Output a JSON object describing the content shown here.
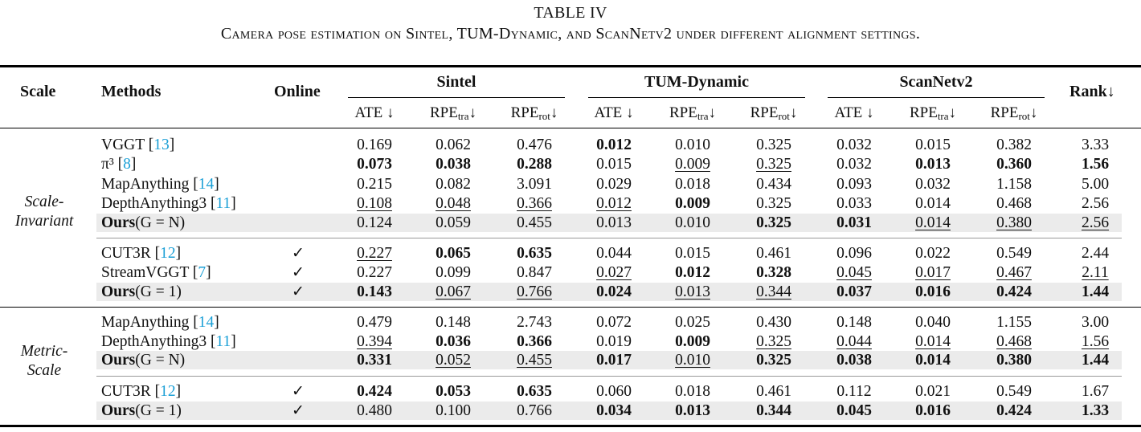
{
  "caption": {
    "label": "TABLE IV",
    "text": "Camera pose estimation on Sintel, TUM-Dynamic, and ScanNetv2 under different alignment settings."
  },
  "headers": {
    "scale": "Scale",
    "methods": "Methods",
    "online": "Online",
    "sintel": "Sintel",
    "tum": "TUM-Dynamic",
    "scannet": "ScanNetv2",
    "rank": "Rank↓",
    "ate": "ATE ↓",
    "rpe_tra_base": "RPE",
    "rpe_tra_sub": "tra",
    "rpe_rot_base": "RPE",
    "rpe_rot_sub": "rot",
    "arrow": "↓"
  },
  "groups": [
    {
      "name_line1": "Scale-",
      "name_line2": "Invariant"
    },
    {
      "name_line1": "Metric-",
      "name_line2": "Scale"
    }
  ],
  "check_mark": "✓",
  "rows": [
    {
      "method": "VGGT",
      "cite": "13",
      "online": false,
      "shaded": false,
      "values": [
        "0.169",
        "0.062",
        "0.476",
        "0.012",
        "0.010",
        "0.325",
        "0.032",
        "0.015",
        "0.382",
        "3.33"
      ],
      "bold": [
        0,
        0,
        0,
        1,
        0,
        0,
        0,
        0,
        0,
        0
      ],
      "under": [
        0,
        0,
        0,
        0,
        0,
        0,
        0,
        0,
        0,
        0
      ]
    },
    {
      "method": "π³",
      "cite": "8",
      "online": false,
      "shaded": false,
      "values": [
        "0.073",
        "0.038",
        "0.288",
        "0.015",
        "0.009",
        "0.325",
        "0.032",
        "0.013",
        "0.360",
        "1.56"
      ],
      "bold": [
        1,
        1,
        1,
        0,
        0,
        0,
        0,
        1,
        1,
        1
      ],
      "under": [
        0,
        0,
        0,
        0,
        1,
        1,
        0,
        0,
        0,
        0
      ]
    },
    {
      "method": "MapAnything",
      "cite": "14",
      "online": false,
      "shaded": false,
      "values": [
        "0.215",
        "0.082",
        "3.091",
        "0.029",
        "0.018",
        "0.434",
        "0.093",
        "0.032",
        "1.158",
        "5.00"
      ],
      "bold": [
        0,
        0,
        0,
        0,
        0,
        0,
        0,
        0,
        0,
        0
      ],
      "under": [
        0,
        0,
        0,
        0,
        0,
        0,
        0,
        0,
        0,
        0
      ]
    },
    {
      "method": "DepthAnything3",
      "cite": "11",
      "online": false,
      "shaded": false,
      "values": [
        "0.108",
        "0.048",
        "0.366",
        "0.012",
        "0.009",
        "0.325",
        "0.033",
        "0.014",
        "0.468",
        "2.56"
      ],
      "bold": [
        0,
        0,
        0,
        0,
        1,
        0,
        0,
        0,
        0,
        0
      ],
      "under": [
        1,
        1,
        1,
        1,
        0,
        0,
        0,
        0,
        0,
        0
      ]
    },
    {
      "method_bold": "Ours",
      "method_math": "(G = N)",
      "online": false,
      "shaded": true,
      "values": [
        "0.124",
        "0.059",
        "0.455",
        "0.013",
        "0.010",
        "0.325",
        "0.031",
        "0.014",
        "0.380",
        "2.56"
      ],
      "bold": [
        0,
        0,
        0,
        0,
        0,
        1,
        1,
        0,
        0,
        0
      ],
      "under": [
        0,
        0,
        0,
        0,
        0,
        0,
        0,
        1,
        1,
        1
      ]
    },
    {
      "method": "CUT3R",
      "cite": "12",
      "online": true,
      "shaded": false,
      "values": [
        "0.227",
        "0.065",
        "0.635",
        "0.044",
        "0.015",
        "0.461",
        "0.096",
        "0.022",
        "0.549",
        "2.44"
      ],
      "bold": [
        0,
        1,
        1,
        0,
        0,
        0,
        0,
        0,
        0,
        0
      ],
      "under": [
        1,
        0,
        0,
        0,
        0,
        0,
        0,
        0,
        0,
        0
      ]
    },
    {
      "method": "StreamVGGT",
      "cite": "7",
      "online": true,
      "shaded": false,
      "values": [
        "0.227",
        "0.099",
        "0.847",
        "0.027",
        "0.012",
        "0.328",
        "0.045",
        "0.017",
        "0.467",
        "2.11"
      ],
      "bold": [
        0,
        0,
        0,
        0,
        1,
        1,
        0,
        0,
        0,
        0
      ],
      "under": [
        0,
        0,
        0,
        1,
        0,
        0,
        1,
        1,
        1,
        1
      ]
    },
    {
      "method_bold": "Ours",
      "method_math": "(G = 1)",
      "online": true,
      "shaded": true,
      "values": [
        "0.143",
        "0.067",
        "0.766",
        "0.024",
        "0.013",
        "0.344",
        "0.037",
        "0.016",
        "0.424",
        "1.44"
      ],
      "bold": [
        1,
        0,
        0,
        1,
        0,
        0,
        1,
        1,
        1,
        1
      ],
      "under": [
        0,
        1,
        1,
        0,
        1,
        1,
        0,
        0,
        0,
        0
      ]
    },
    {
      "method": "MapAnything",
      "cite": "14",
      "online": false,
      "shaded": false,
      "values": [
        "0.479",
        "0.148",
        "2.743",
        "0.072",
        "0.025",
        "0.430",
        "0.148",
        "0.040",
        "1.155",
        "3.00"
      ],
      "bold": [
        0,
        0,
        0,
        0,
        0,
        0,
        0,
        0,
        0,
        0
      ],
      "under": [
        0,
        0,
        0,
        0,
        0,
        0,
        0,
        0,
        0,
        0
      ]
    },
    {
      "method": "DepthAnything3",
      "cite": "11",
      "online": false,
      "shaded": false,
      "values": [
        "0.394",
        "0.036",
        "0.366",
        "0.019",
        "0.009",
        "0.325",
        "0.044",
        "0.014",
        "0.468",
        "1.56"
      ],
      "bold": [
        0,
        1,
        1,
        0,
        1,
        0,
        0,
        0,
        0,
        0
      ],
      "under": [
        1,
        0,
        0,
        0,
        0,
        1,
        1,
        1,
        1,
        1
      ]
    },
    {
      "method_bold": "Ours",
      "method_math": "(G = N)",
      "online": false,
      "shaded": true,
      "values": [
        "0.331",
        "0.052",
        "0.455",
        "0.017",
        "0.010",
        "0.325",
        "0.038",
        "0.014",
        "0.380",
        "1.44"
      ],
      "bold": [
        1,
        0,
        0,
        1,
        0,
        1,
        1,
        1,
        1,
        1
      ],
      "under": [
        0,
        1,
        1,
        0,
        1,
        0,
        0,
        0,
        0,
        0
      ]
    },
    {
      "method": "CUT3R",
      "cite": "12",
      "online": true,
      "shaded": false,
      "values": [
        "0.424",
        "0.053",
        "0.635",
        "0.060",
        "0.018",
        "0.461",
        "0.112",
        "0.021",
        "0.549",
        "1.67"
      ],
      "bold": [
        1,
        1,
        1,
        0,
        0,
        0,
        0,
        0,
        0,
        0
      ],
      "under": [
        0,
        0,
        0,
        0,
        0,
        0,
        0,
        0,
        0,
        0
      ]
    },
    {
      "method_bold": "Ours",
      "method_math": "(G = 1)",
      "online": true,
      "shaded": true,
      "values": [
        "0.480",
        "0.100",
        "0.766",
        "0.034",
        "0.013",
        "0.344",
        "0.045",
        "0.016",
        "0.424",
        "1.33"
      ],
      "bold": [
        0,
        0,
        0,
        1,
        1,
        1,
        1,
        1,
        1,
        1
      ],
      "under": [
        0,
        0,
        0,
        0,
        0,
        0,
        0,
        0,
        0,
        0
      ]
    }
  ]
}
